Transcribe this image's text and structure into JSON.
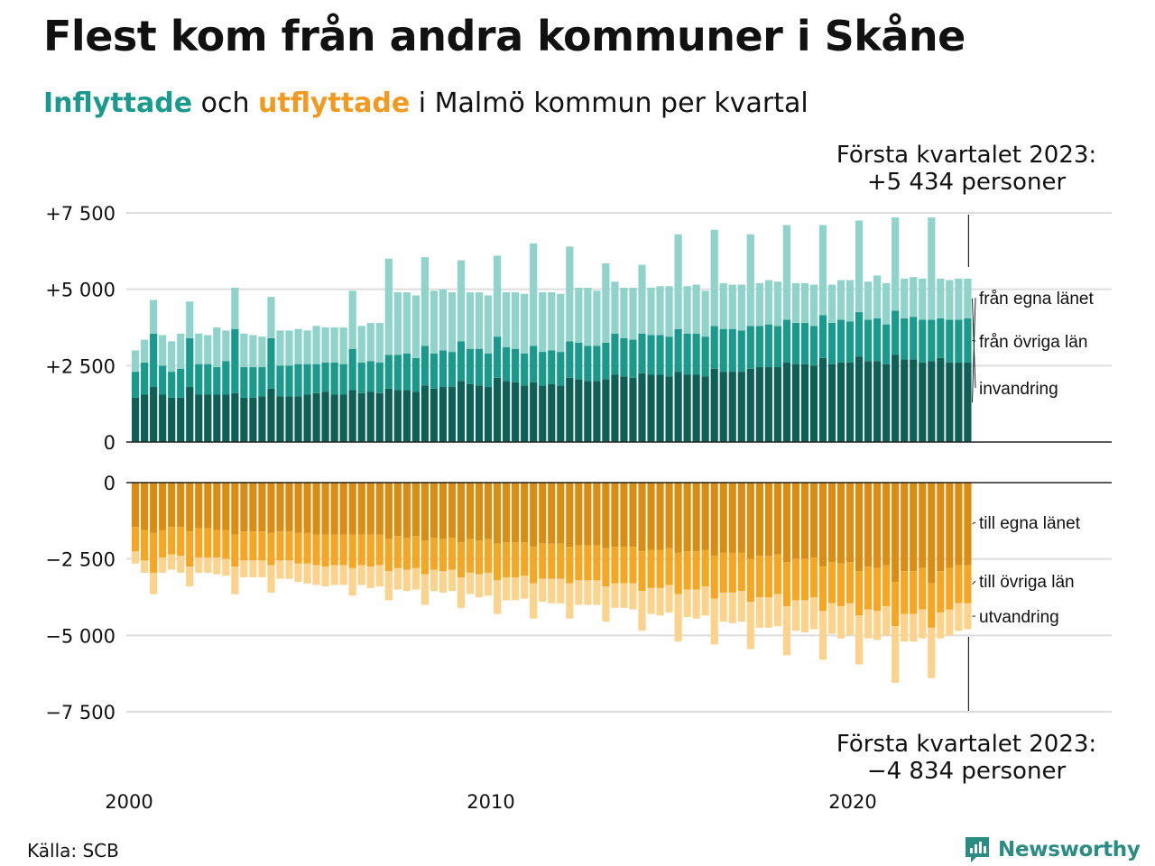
{
  "header": {
    "title": "Flest kom från andra kommuner i Skåne",
    "subtitle_in": "Inflyttade",
    "subtitle_mid": " och ",
    "subtitle_out": "utflyttade",
    "subtitle_rest": " i Malmö kommun per kvartal"
  },
  "footer": {
    "source": "Källa: SCB",
    "brand": "Newsworthy"
  },
  "colors": {
    "in_egna": "#0e5f56",
    "in_ovriga": "#1a9a8c",
    "in_invandring": "#8fd3cb",
    "out_egna": "#d98d12",
    "out_ovriga": "#f5a623",
    "out_utvandring": "#fbd38d",
    "grid": "#dddddd",
    "axis": "#222222",
    "brand": "#2a8c82"
  },
  "chart_data": {
    "type": "bar",
    "stacked": true,
    "grid": true,
    "x_ticks": [
      "2000",
      "2010",
      "2020"
    ],
    "y_ticks_top": [
      "+7 500",
      "+5 000",
      "+2 500",
      "0"
    ],
    "y_ticks_bottom": [
      "0",
      "−2 500",
      "−5 000",
      "−7 500"
    ],
    "ylim_top": [
      0,
      7500
    ],
    "ylim_bottom": [
      -7500,
      0
    ],
    "x_start": "2000 Q1",
    "x_end": "2023 Q1",
    "callout_top": {
      "line1": "Första kvartalet 2023:",
      "line2": "+5 434 personer"
    },
    "callout_bottom": {
      "line1": "Första kvartalet 2023:",
      "line2": "−4 834 personer"
    },
    "series_in": [
      {
        "name": "från egna länet",
        "values": [
          1450,
          1550,
          1800,
          1550,
          1450,
          1450,
          1800,
          1550,
          1550,
          1550,
          1550,
          1600,
          1450,
          1450,
          1500,
          1750,
          1500,
          1500,
          1500,
          1550,
          1600,
          1650,
          1550,
          1550,
          1700,
          1600,
          1650,
          1600,
          1750,
          1700,
          1700,
          1650,
          1850,
          1750,
          1800,
          1800,
          2000,
          1900,
          1850,
          1800,
          2100,
          2000,
          1950,
          1850,
          1950,
          1850,
          1900,
          1850,
          2100,
          2050,
          2000,
          2000,
          2050,
          2200,
          2150,
          2100,
          2250,
          2200,
          2200,
          2150,
          2300,
          2200,
          2200,
          2150,
          2400,
          2300,
          2300,
          2300,
          2400,
          2450,
          2450,
          2450,
          2600,
          2550,
          2550,
          2500,
          2750,
          2550,
          2600,
          2600,
          2800,
          2650,
          2650,
          2550,
          2850,
          2700,
          2700,
          2600,
          2650,
          2750,
          2600,
          2600,
          2600
        ]
      },
      {
        "name": "från övriga län",
        "values": [
          850,
          1050,
          1750,
          950,
          850,
          950,
          1600,
          1000,
          1000,
          900,
          1100,
          2100,
          1000,
          1000,
          950,
          1650,
          1000,
          1000,
          1050,
          1000,
          950,
          950,
          1050,
          1000,
          1350,
          1000,
          1000,
          1000,
          1100,
          1150,
          1200,
          1100,
          1300,
          1150,
          1200,
          1150,
          1300,
          1150,
          1200,
          1100,
          1350,
          1100,
          1100,
          1050,
          1200,
          1100,
          1100,
          1100,
          1200,
          1200,
          1150,
          1150,
          1200,
          1350,
          1250,
          1250,
          1300,
          1300,
          1300,
          1300,
          1400,
          1350,
          1350,
          1300,
          1400,
          1400,
          1400,
          1350,
          1400,
          1350,
          1400,
          1350,
          1400,
          1350,
          1350,
          1300,
          1400,
          1350,
          1400,
          1350,
          1450,
          1350,
          1400,
          1300,
          1450,
          1350,
          1400,
          1400,
          1350,
          1300,
          1400,
          1400,
          1450
        ]
      },
      {
        "name": "invandring",
        "values": [
          700,
          750,
          1100,
          1000,
          1000,
          1150,
          1200,
          1000,
          950,
          1300,
          1000,
          1350,
          1100,
          1050,
          1000,
          1350,
          1150,
          1150,
          1150,
          1100,
          1250,
          1150,
          1150,
          1200,
          1900,
          1200,
          1250,
          1300,
          3150,
          2050,
          2000,
          2050,
          2900,
          2050,
          2000,
          1950,
          2650,
          1850,
          1850,
          1900,
          2650,
          1800,
          1850,
          1950,
          3350,
          1950,
          1900,
          1900,
          3100,
          1800,
          1900,
          1800,
          2600,
          1700,
          1650,
          1700,
          2250,
          1550,
          1600,
          1650,
          3100,
          1550,
          1600,
          1500,
          3150,
          1500,
          1450,
          1500,
          3000,
          1400,
          1450,
          1450,
          3100,
          1300,
          1300,
          1350,
          2950,
          1250,
          1300,
          1350,
          3000,
          1250,
          1400,
          1350,
          3050,
          1300,
          1300,
          1350,
          3350,
          1300,
          1300,
          1350,
          1300
        ]
      }
    ],
    "series_out": [
      {
        "name": "till egna länet",
        "values": [
          -1450,
          -1550,
          -1650,
          -1550,
          -1450,
          -1450,
          -1600,
          -1500,
          -1500,
          -1550,
          -1550,
          -1700,
          -1600,
          -1600,
          -1600,
          -1650,
          -1600,
          -1600,
          -1650,
          -1650,
          -1700,
          -1700,
          -1700,
          -1700,
          -1700,
          -1700,
          -1700,
          -1700,
          -1850,
          -1750,
          -1800,
          -1750,
          -1900,
          -1800,
          -1850,
          -1800,
          -1950,
          -1850,
          -1900,
          -1850,
          -2000,
          -1950,
          -1950,
          -1950,
          -2100,
          -2000,
          -2000,
          -2000,
          -2100,
          -2050,
          -2050,
          -2050,
          -2150,
          -2100,
          -2100,
          -2100,
          -2250,
          -2200,
          -2200,
          -2150,
          -2300,
          -2250,
          -2250,
          -2200,
          -2400,
          -2300,
          -2300,
          -2300,
          -2500,
          -2400,
          -2400,
          -2350,
          -2600,
          -2500,
          -2500,
          -2450,
          -2750,
          -2600,
          -2650,
          -2600,
          -2900,
          -2750,
          -2800,
          -2700,
          -3250,
          -2900,
          -2900,
          -2800,
          -3300,
          -2900,
          -2800,
          -2700,
          -2700
        ]
      },
      {
        "name": "till övriga län",
        "values": [
          -800,
          -1000,
          -1300,
          -900,
          -900,
          -950,
          -1150,
          -950,
          -950,
          -900,
          -950,
          -1050,
          -950,
          -950,
          -950,
          -1050,
          -950,
          -950,
          -1000,
          -1000,
          -1000,
          -1050,
          -1000,
          -1000,
          -1100,
          -1000,
          -1050,
          -1000,
          -1050,
          -1050,
          -1050,
          -1050,
          -1100,
          -1050,
          -1050,
          -1050,
          -1150,
          -1100,
          -1100,
          -1100,
          -1200,
          -1150,
          -1150,
          -1100,
          -1200,
          -1150,
          -1150,
          -1150,
          -1200,
          -1150,
          -1150,
          -1150,
          -1250,
          -1200,
          -1200,
          -1200,
          -1300,
          -1250,
          -1250,
          -1200,
          -1350,
          -1250,
          -1250,
          -1200,
          -1400,
          -1300,
          -1300,
          -1250,
          -1400,
          -1350,
          -1350,
          -1300,
          -1450,
          -1350,
          -1350,
          -1300,
          -1450,
          -1350,
          -1400,
          -1350,
          -1450,
          -1400,
          -1400,
          -1350,
          -1450,
          -1400,
          -1400,
          -1350,
          -1450,
          -1350,
          -1350,
          -1250,
          -1250
        ]
      },
      {
        "name": "utvandring",
        "values": [
          -400,
          -400,
          -700,
          -500,
          -500,
          -550,
          -650,
          -500,
          -500,
          -550,
          -550,
          -900,
          -550,
          -550,
          -550,
          -900,
          -600,
          -600,
          -600,
          -650,
          -650,
          -650,
          -650,
          -650,
          -900,
          -650,
          -700,
          -700,
          -950,
          -700,
          -700,
          -700,
          -1000,
          -700,
          -700,
          -700,
          -1000,
          -700,
          -750,
          -750,
          -1100,
          -750,
          -750,
          -750,
          -1150,
          -750,
          -800,
          -800,
          -1150,
          -800,
          -800,
          -800,
          -1150,
          -800,
          -800,
          -850,
          -1300,
          -850,
          -900,
          -900,
          -1550,
          -900,
          -950,
          -950,
          -1500,
          -950,
          -1000,
          -1000,
          -1550,
          -1000,
          -1000,
          -1050,
          -1600,
          -1000,
          -1050,
          -1050,
          -1600,
          -1000,
          -1050,
          -1050,
          -1600,
          -950,
          -950,
          -950,
          -1850,
          -900,
          -900,
          -950,
          -1650,
          -850,
          -850,
          -900,
          -850
        ]
      }
    ]
  }
}
